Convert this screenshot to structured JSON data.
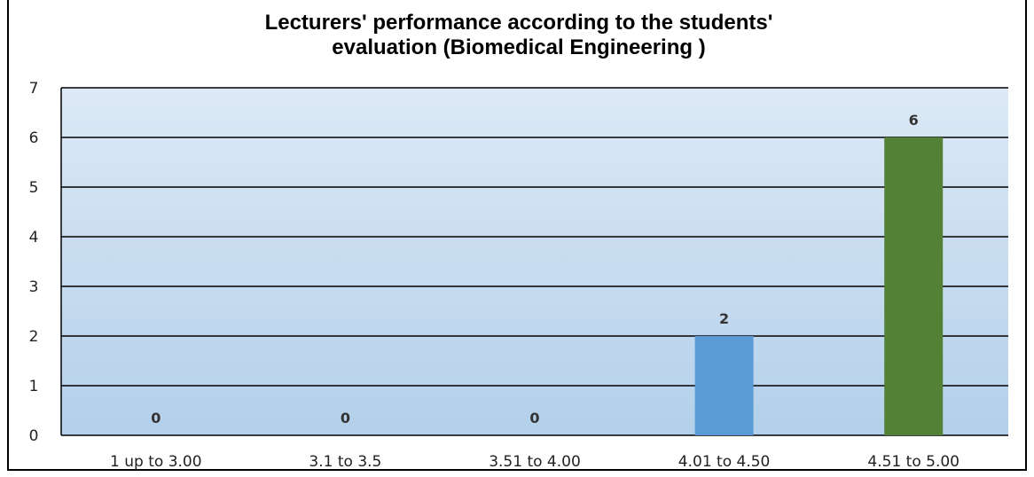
{
  "chart_data": {
    "type": "bar",
    "title": [
      "Lecturers' performance according to the students'",
      "evaluation (Biomedical Engineering )"
    ],
    "categories": [
      "1 up to 3.00",
      "3.1 to 3.5",
      "3.51 to 4.00",
      "4.01 to 4.50",
      "4.51 to 5.00"
    ],
    "values": [
      0,
      0,
      0,
      2,
      6
    ],
    "bar_colors": [
      "#5b9bd5",
      "#5b9bd5",
      "#5b9bd5",
      "#5b9bd5",
      "#538135"
    ],
    "ylim": [
      0,
      7
    ],
    "yticks": [
      0,
      1,
      2,
      3,
      4,
      5,
      6,
      7
    ],
    "xlabel": "",
    "ylabel": "",
    "grid": true,
    "legend": "none",
    "plot_background": [
      "#dde9f6",
      "#b3d0ea"
    ]
  }
}
